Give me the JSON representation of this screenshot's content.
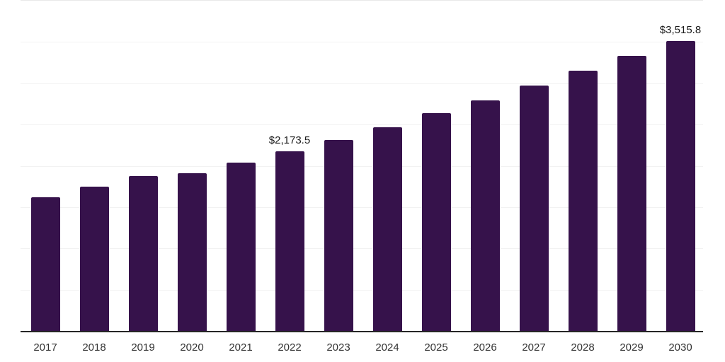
{
  "chart_data": {
    "type": "bar",
    "categories": [
      "2017",
      "2018",
      "2019",
      "2020",
      "2021",
      "2022",
      "2023",
      "2024",
      "2025",
      "2026",
      "2027",
      "2028",
      "2029",
      "2030"
    ],
    "values": [
      1620,
      1750,
      1880,
      1910,
      2040,
      2173.5,
      2315,
      2470,
      2635,
      2795,
      2970,
      3150,
      3330,
      3515.8
    ],
    "title": "",
    "xlabel": "",
    "ylabel": "",
    "ylim": [
      0,
      4000
    ],
    "gridline_interval": 500,
    "grid": "horizontal-light",
    "legend_position": "none",
    "y_axis_tick_labels_visible": false,
    "annotations": [
      {
        "index": 5,
        "category": "2022",
        "label": "$2,173.5"
      },
      {
        "index": 13,
        "category": "2030",
        "label": "$3,515.8"
      }
    ],
    "colors": {
      "bar": "#36124b",
      "axis_line": "#262626",
      "top_border": "#e9e9e9",
      "gridline": "#f2f2f2",
      "annotation_text": "#1a1a1a",
      "tick_text": "#333333",
      "background": "#ffffff"
    }
  }
}
